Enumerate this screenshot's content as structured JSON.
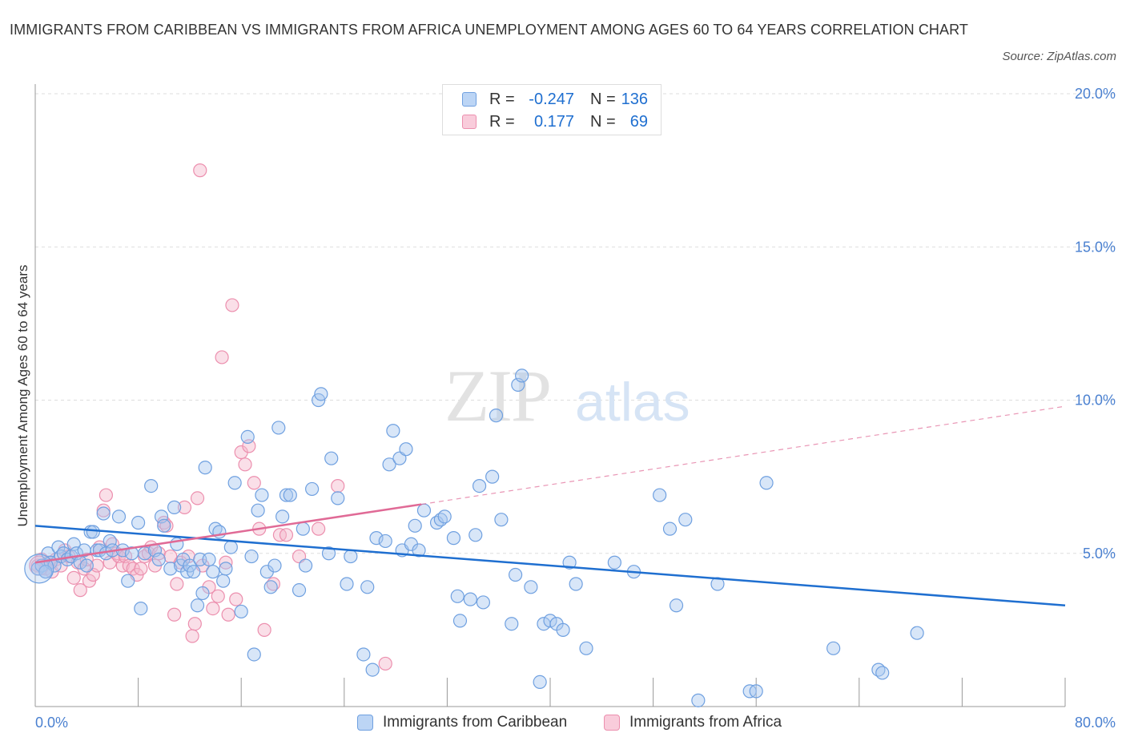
{
  "title": "IMMIGRANTS FROM CARIBBEAN VS IMMIGRANTS FROM AFRICA UNEMPLOYMENT AMONG AGES 60 TO 64 YEARS CORRELATION CHART",
  "source": "Source: ZipAtlas.com",
  "watermark": {
    "zip": "ZIP",
    "atlas": "atlas"
  },
  "legend": {
    "rows": [
      {
        "r_label": "R =",
        "r_value": "-0.247",
        "n_label": "N =",
        "n_value": "136"
      },
      {
        "r_label": "R =",
        "r_value": "0.177",
        "n_label": "N =",
        "n_value": "69"
      }
    ]
  },
  "colors": {
    "caribbean_fill": "#a8c8f0",
    "caribbean_stroke": "#6fa0e0",
    "caribbean_line": "#1f6fd0",
    "africa_fill": "#f5b8cc",
    "africa_stroke": "#ec8fae",
    "africa_line": "#e06a96",
    "axis_text": "#4a80d0",
    "grid": "#dddddd"
  },
  "chart_data": {
    "type": "scatter",
    "title": "IMMIGRANTS FROM CARIBBEAN VS IMMIGRANTS FROM AFRICA UNEMPLOYMENT AMONG AGES 60 TO 64 YEARS CORRELATION CHART",
    "xlabel": "",
    "ylabel": "Unemployment Among Ages 60 to 64 years",
    "xlim": [
      0,
      80
    ],
    "ylim": [
      0,
      20
    ],
    "x_tick_labels": [
      "0.0%",
      "80.0%"
    ],
    "y_ticks": [
      5,
      10,
      15,
      20
    ],
    "y_tick_labels": [
      "5.0%",
      "10.0%",
      "15.0%",
      "20.0%"
    ],
    "grid": true,
    "legend_position": "top-center",
    "series": [
      {
        "name": "Immigrants from Caribbean",
        "trend": {
          "x": [
            0,
            80
          ],
          "y": [
            5.9,
            3.3
          ],
          "style": "solid"
        },
        "points": [
          [
            0.2,
            4.5
          ],
          [
            0.5,
            4.6
          ],
          [
            0.8,
            4.4
          ],
          [
            1.0,
            5.0
          ],
          [
            1.2,
            4.7
          ],
          [
            1.5,
            4.6
          ],
          [
            1.8,
            5.2
          ],
          [
            2.0,
            4.9
          ],
          [
            2.2,
            5.0
          ],
          [
            2.5,
            4.8
          ],
          [
            2.8,
            4.9
          ],
          [
            3.0,
            5.3
          ],
          [
            3.2,
            5.0
          ],
          [
            3.5,
            4.7
          ],
          [
            3.8,
            5.1
          ],
          [
            4.0,
            4.6
          ],
          [
            4.3,
            5.7
          ],
          [
            4.5,
            5.7
          ],
          [
            4.8,
            5.1
          ],
          [
            5.0,
            5.1
          ],
          [
            5.3,
            6.3
          ],
          [
            5.5,
            5.0
          ],
          [
            5.8,
            5.4
          ],
          [
            6.0,
            5.1
          ],
          [
            6.5,
            6.2
          ],
          [
            6.8,
            5.1
          ],
          [
            7.2,
            4.1
          ],
          [
            7.5,
            5.0
          ],
          [
            8.0,
            6.0
          ],
          [
            8.2,
            3.2
          ],
          [
            8.5,
            5.0
          ],
          [
            9.0,
            7.2
          ],
          [
            9.3,
            5.1
          ],
          [
            9.6,
            4.8
          ],
          [
            9.8,
            6.2
          ],
          [
            10.0,
            5.9
          ],
          [
            10.5,
            4.5
          ],
          [
            10.8,
            6.5
          ],
          [
            11.0,
            5.3
          ],
          [
            11.3,
            4.6
          ],
          [
            11.5,
            4.8
          ],
          [
            11.8,
            4.4
          ],
          [
            12.0,
            4.6
          ],
          [
            12.3,
            4.4
          ],
          [
            12.6,
            3.3
          ],
          [
            12.8,
            4.8
          ],
          [
            13.0,
            3.7
          ],
          [
            13.2,
            7.8
          ],
          [
            13.5,
            4.8
          ],
          [
            13.8,
            4.4
          ],
          [
            14.0,
            5.8
          ],
          [
            14.3,
            5.7
          ],
          [
            14.6,
            4.1
          ],
          [
            14.8,
            4.5
          ],
          [
            15.2,
            5.2
          ],
          [
            15.5,
            7.3
          ],
          [
            16.0,
            3.1
          ],
          [
            16.5,
            8.8
          ],
          [
            16.8,
            4.9
          ],
          [
            17.0,
            1.7
          ],
          [
            17.3,
            6.4
          ],
          [
            17.6,
            6.9
          ],
          [
            18.0,
            4.4
          ],
          [
            18.3,
            3.9
          ],
          [
            18.6,
            4.6
          ],
          [
            18.9,
            9.1
          ],
          [
            19.2,
            6.2
          ],
          [
            19.5,
            6.9
          ],
          [
            19.8,
            6.9
          ],
          [
            20.5,
            3.8
          ],
          [
            20.8,
            5.8
          ],
          [
            21.0,
            4.6
          ],
          [
            21.5,
            7.1
          ],
          [
            22.0,
            10.0
          ],
          [
            22.2,
            10.2
          ],
          [
            22.8,
            5.0
          ],
          [
            23.0,
            8.1
          ],
          [
            23.5,
            6.8
          ],
          [
            24.2,
            4.0
          ],
          [
            24.5,
            4.9
          ],
          [
            25.5,
            1.7
          ],
          [
            25.8,
            3.9
          ],
          [
            26.2,
            1.2
          ],
          [
            26.5,
            5.5
          ],
          [
            27.2,
            5.4
          ],
          [
            27.5,
            7.9
          ],
          [
            27.8,
            9.0
          ],
          [
            28.3,
            8.1
          ],
          [
            28.5,
            5.1
          ],
          [
            28.8,
            8.4
          ],
          [
            29.2,
            5.3
          ],
          [
            29.5,
            5.9
          ],
          [
            29.8,
            5.1
          ],
          [
            30.2,
            6.4
          ],
          [
            31.2,
            6.0
          ],
          [
            31.5,
            6.1
          ],
          [
            31.8,
            6.2
          ],
          [
            32.5,
            5.5
          ],
          [
            32.8,
            3.6
          ],
          [
            33.0,
            2.8
          ],
          [
            33.8,
            3.5
          ],
          [
            34.2,
            5.6
          ],
          [
            34.5,
            7.2
          ],
          [
            34.8,
            3.4
          ],
          [
            35.5,
            7.5
          ],
          [
            35.8,
            9.5
          ],
          [
            36.2,
            6.1
          ],
          [
            37.0,
            2.7
          ],
          [
            37.3,
            4.3
          ],
          [
            37.5,
            10.5
          ],
          [
            37.8,
            10.8
          ],
          [
            38.5,
            3.9
          ],
          [
            39.2,
            0.8
          ],
          [
            39.5,
            2.7
          ],
          [
            40.0,
            2.8
          ],
          [
            40.5,
            2.7
          ],
          [
            41.0,
            2.5
          ],
          [
            41.5,
            4.7
          ],
          [
            42.0,
            4.0
          ],
          [
            42.8,
            1.9
          ],
          [
            45.0,
            4.7
          ],
          [
            46.5,
            4.4
          ],
          [
            48.5,
            6.9
          ],
          [
            49.3,
            5.8
          ],
          [
            49.8,
            3.3
          ],
          [
            50.5,
            6.1
          ],
          [
            51.5,
            0.2
          ],
          [
            53.0,
            4.0
          ],
          [
            55.5,
            0.5
          ],
          [
            56.0,
            0.5
          ],
          [
            56.8,
            7.3
          ],
          [
            62.0,
            1.9
          ],
          [
            65.5,
            1.2
          ],
          [
            65.8,
            1.1
          ],
          [
            68.5,
            2.4
          ],
          [
            0.8,
            4.4
          ]
        ]
      },
      {
        "name": "Immigrants from Africa",
        "trend": {
          "x": [
            0,
            30,
            80
          ],
          "y": [
            4.7,
            6.6,
            9.8
          ],
          "style": "solid-then-dashed",
          "solid_until": 30
        },
        "points": [
          [
            0.2,
            4.6
          ],
          [
            0.5,
            4.8
          ],
          [
            0.8,
            4.5
          ],
          [
            1.0,
            4.7
          ],
          [
            1.3,
            4.4
          ],
          [
            1.6,
            4.8
          ],
          [
            2.0,
            4.6
          ],
          [
            2.3,
            5.1
          ],
          [
            2.6,
            4.9
          ],
          [
            3.0,
            4.2
          ],
          [
            3.3,
            4.7
          ],
          [
            3.5,
            3.8
          ],
          [
            3.8,
            4.5
          ],
          [
            4.0,
            4.8
          ],
          [
            4.2,
            4.1
          ],
          [
            4.5,
            4.3
          ],
          [
            4.8,
            4.6
          ],
          [
            5.0,
            5.2
          ],
          [
            5.3,
            6.4
          ],
          [
            5.5,
            6.9
          ],
          [
            5.8,
            4.7
          ],
          [
            6.0,
            5.3
          ],
          [
            6.3,
            5.0
          ],
          [
            6.5,
            4.9
          ],
          [
            6.8,
            4.6
          ],
          [
            7.0,
            4.9
          ],
          [
            7.3,
            4.6
          ],
          [
            7.6,
            4.5
          ],
          [
            7.9,
            4.3
          ],
          [
            8.2,
            4.5
          ],
          [
            8.5,
            4.9
          ],
          [
            8.8,
            5.0
          ],
          [
            9.0,
            5.2
          ],
          [
            9.3,
            4.6
          ],
          [
            9.6,
            5.0
          ],
          [
            10.0,
            6.0
          ],
          [
            10.2,
            5.9
          ],
          [
            10.5,
            4.9
          ],
          [
            10.8,
            3.0
          ],
          [
            11.0,
            4.0
          ],
          [
            11.3,
            4.7
          ],
          [
            11.6,
            6.5
          ],
          [
            11.9,
            4.9
          ],
          [
            12.2,
            2.3
          ],
          [
            12.4,
            2.7
          ],
          [
            12.6,
            6.8
          ],
          [
            12.8,
            17.5
          ],
          [
            13.0,
            4.6
          ],
          [
            13.5,
            3.9
          ],
          [
            13.8,
            3.2
          ],
          [
            14.2,
            3.6
          ],
          [
            14.5,
            11.4
          ],
          [
            14.8,
            4.7
          ],
          [
            15.0,
            3.0
          ],
          [
            15.3,
            13.1
          ],
          [
            15.6,
            3.5
          ],
          [
            16.0,
            8.3
          ],
          [
            16.3,
            7.9
          ],
          [
            16.6,
            8.5
          ],
          [
            17.0,
            7.3
          ],
          [
            17.4,
            5.8
          ],
          [
            17.8,
            2.5
          ],
          [
            18.5,
            4.0
          ],
          [
            19.0,
            5.6
          ],
          [
            19.5,
            5.6
          ],
          [
            20.5,
            4.9
          ],
          [
            22.0,
            5.8
          ],
          [
            23.5,
            7.2
          ],
          [
            27.2,
            1.4
          ]
        ]
      }
    ]
  },
  "bottom_legend": [
    "Immigrants from Caribbean",
    "Immigrants from Africa"
  ]
}
